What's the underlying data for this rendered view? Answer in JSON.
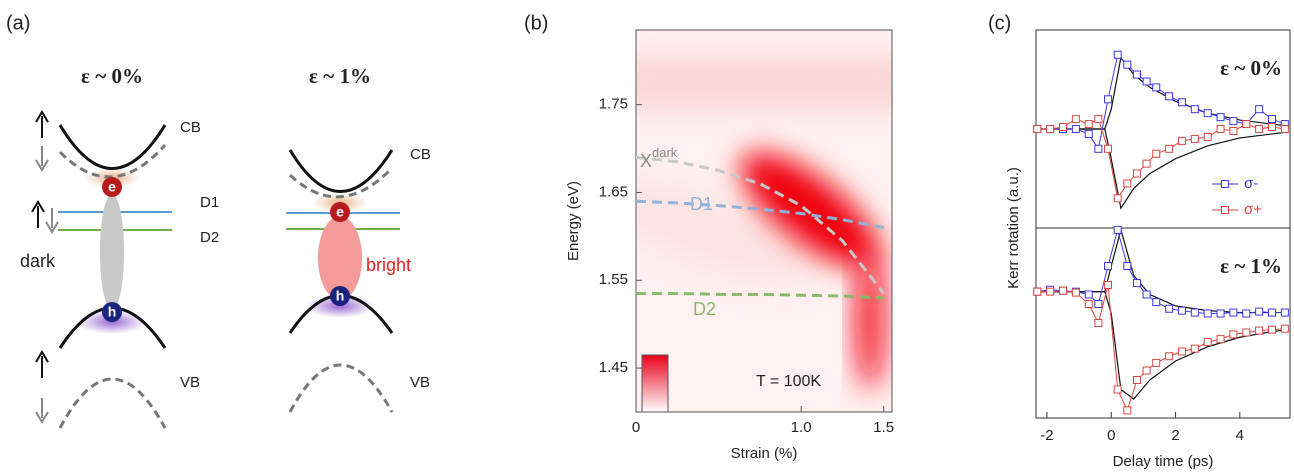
{
  "diagram": {
    "panel_label": "(a)",
    "left": {
      "title": "ε ~ 0%",
      "cb": "CB",
      "d1": "D1",
      "d2": "D2",
      "exciton": "dark",
      "e": "e",
      "h": "h",
      "vb": "VB"
    },
    "right": {
      "title": "ε ~ 1%",
      "cb": "CB",
      "exciton": "bright",
      "e": "e",
      "h": "h",
      "vb": "VB"
    }
  },
  "chart_data": [
    {
      "type": "line",
      "panel_label": "(b)",
      "xlabel": "Strain (%)",
      "ylabel": "Energy (eV)",
      "x": [
        0,
        0.25,
        0.5,
        0.75,
        1.0,
        1.25,
        1.5
      ],
      "series": [
        {
          "name": "X",
          "name_sup": "dark",
          "color": "#c8c8c8",
          "values": [
            1.69,
            1.685,
            1.675,
            1.66,
            1.635,
            1.595,
            1.535
          ]
        },
        {
          "name": "D1",
          "color": "#8fb2d8",
          "values": [
            1.64,
            1.638,
            1.635,
            1.631,
            1.626,
            1.619,
            1.61
          ]
        },
        {
          "name": "D2",
          "color": "#8ab86a",
          "values": [
            1.535,
            1.535,
            1.534,
            1.534,
            1.533,
            1.532,
            1.53
          ]
        }
      ],
      "annotation": "T = 100K",
      "xlim": [
        0,
        1.55
      ],
      "xticks": [
        0,
        {
          "value": 1.0,
          "label": "1.0"
        },
        1.5
      ],
      "ylim": [
        1.4,
        1.835
      ],
      "yticks": [
        1.45,
        1.55,
        1.65,
        1.75
      ]
    },
    {
      "type": "kerr",
      "panel_label": "(c)",
      "ylabel": "Kerr rotation (a.u.)",
      "annotation": "ε ~ 0%",
      "legend": "lower right",
      "x": [
        -2.3,
        -1.9,
        -1.5,
        -1.1,
        -0.7,
        -0.4,
        -0.1,
        0.2,
        0.5,
        0.8,
        1.1,
        1.4,
        1.8,
        2.2,
        2.6,
        3.0,
        3.4,
        3.8,
        4.2,
        4.6,
        5.0,
        5.4
      ],
      "series": [
        {
          "name": "σ-",
          "color": "#3a3ae0",
          "values": [
            0,
            0,
            0,
            0,
            -0.05,
            -0.2,
            0.3,
            0.75,
            0.65,
            0.55,
            0.48,
            0.42,
            0.33,
            0.27,
            0.2,
            0.16,
            0.12,
            0.08,
            0.05,
            0.2,
            0.1,
            0.05
          ]
        },
        {
          "name": "σ+",
          "color": "#d9463e",
          "values": [
            0,
            0,
            0.02,
            0.1,
            0.05,
            0.1,
            -0.2,
            -0.7,
            -0.55,
            -0.45,
            -0.35,
            -0.25,
            -0.2,
            -0.12,
            -0.1,
            -0.08,
            0,
            -0.02,
            0.05,
            0,
            0.02,
            0
          ]
        }
      ],
      "fit_x": [
        -2.3,
        -0.2,
        0,
        0.3,
        0.7,
        1.2,
        2,
        3,
        4,
        5,
        5.5
      ],
      "fits": [
        {
          "color": "#111",
          "values": [
            0,
            0,
            0.2,
            0.72,
            0.55,
            0.42,
            0.28,
            0.16,
            0.09,
            0.05,
            0.03
          ]
        },
        {
          "color": "#111",
          "values": [
            0,
            0,
            -0.3,
            -0.8,
            -0.6,
            -0.45,
            -0.3,
            -0.17,
            -0.09,
            -0.05,
            -0.03
          ]
        }
      ],
      "xlim": [
        -2.34,
        5.56
      ],
      "ylim": [
        -1,
        1
      ]
    },
    {
      "type": "kerr",
      "annotation": "ε ~ 1%",
      "xlabel": "Delay time (ps)",
      "x": [
        -2.3,
        -1.9,
        -1.5,
        -1.1,
        -0.7,
        -0.4,
        -0.1,
        0.2,
        0.5,
        0.8,
        1.1,
        1.4,
        1.8,
        2.2,
        2.6,
        3.0,
        3.4,
        3.8,
        4.2,
        4.6,
        5.0,
        5.4
      ],
      "series": [
        {
          "name": "σ-",
          "color": "#3a3ae0",
          "values": [
            0.33,
            0.35,
            0.34,
            0.33,
            0.3,
            0.2,
            0.6,
            0.98,
            0.6,
            0.42,
            0.3,
            0.22,
            0.15,
            0.13,
            0.11,
            0.1,
            0.1,
            0.11,
            0.1,
            0.12,
            0.11,
            0.11
          ]
        },
        {
          "name": "σ+",
          "color": "#d9463e",
          "values": [
            0.33,
            0.33,
            0.34,
            0.32,
            0.2,
            0,
            0.4,
            -0.7,
            -0.92,
            -0.6,
            -0.5,
            -0.42,
            -0.35,
            -0.3,
            -0.27,
            -0.2,
            -0.17,
            -0.12,
            -0.1,
            -0.08,
            -0.07,
            -0.06
          ]
        }
      ],
      "fit_x": [
        -2.3,
        -0.2,
        0,
        0.3,
        0.7,
        1.2,
        2,
        3,
        4,
        5,
        5.5
      ],
      "fits": [
        {
          "color": "#111",
          "values": [
            0.33,
            0.33,
            0.6,
            0.98,
            0.5,
            0.3,
            0.18,
            0.13,
            0.11,
            0.11,
            0.11
          ]
        },
        {
          "color": "#111",
          "values": [
            0.33,
            0.33,
            0.1,
            -0.7,
            -0.8,
            -0.6,
            -0.4,
            -0.25,
            -0.15,
            -0.09,
            -0.07
          ]
        }
      ],
      "xlim": [
        -2.34,
        5.56
      ],
      "ylim": [
        -1,
        1
      ],
      "xticks": [
        -2,
        0,
        2,
        4
      ]
    }
  ]
}
